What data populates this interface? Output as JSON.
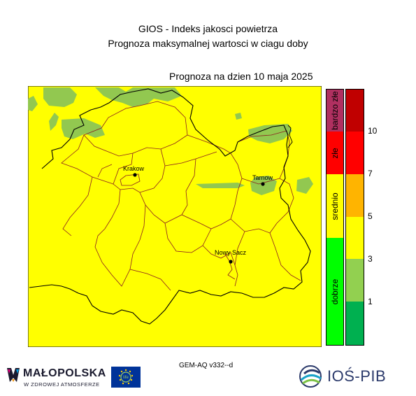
{
  "title_line1": "GIOS - Indeks jakosci powietrza",
  "title_line2": "Prognoza maksymalnej wartosci w ciagu doby",
  "date_line": "Prognoza na dzien  10 maja 2025",
  "cities": [
    {
      "name": "Krakow"
    },
    {
      "name": "Tarnow"
    },
    {
      "name": "Nowy Sacz"
    }
  ],
  "categories": [
    {
      "label": "bardzo złe",
      "color": "#b03060"
    },
    {
      "label": "złe",
      "color": "#ff0000"
    },
    {
      "label": "srednio",
      "color": "#ffff00"
    },
    {
      "label": "dobrze",
      "color": "#00ff00"
    }
  ],
  "scale_colors": [
    "#c00000",
    "#ff0000",
    "#ff0000",
    "#ffb400",
    "#ffff00",
    "#ffff00",
    "#92d050",
    "#00b050"
  ],
  "scale_ticks": [
    "10",
    "7",
    "5",
    "3",
    "1"
  ],
  "map_colors": {
    "yellow": "#ffff00",
    "green": "#92c850",
    "border": "#8b2020"
  },
  "model_label": "GEM-AQ v332--d",
  "logos": {
    "malopolska_name": "MAŁOPOLSKA",
    "malopolska_sub": "W ZDROWEJ ATMOSFERZE",
    "eu_text": "life",
    "ios_name": "IOŚ-PIB"
  }
}
